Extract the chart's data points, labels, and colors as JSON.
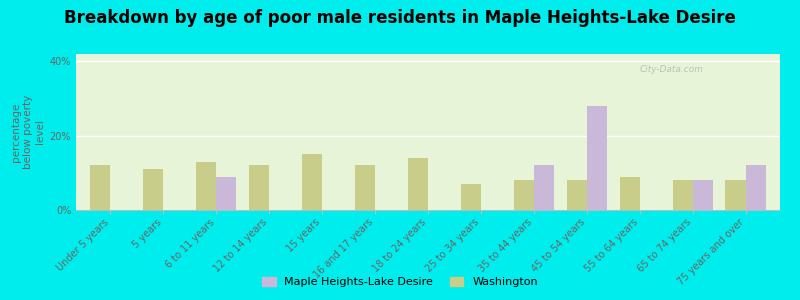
{
  "title": "Breakdown by age of poor male residents in Maple Heights-Lake Desire",
  "categories": [
    "Under 5 years",
    "5 years",
    "6 to 11 years",
    "12 to 14 years",
    "15 years",
    "16 and 17 years",
    "18 to 24 years",
    "25 to 34 years",
    "35 to 44 years",
    "45 to 54 years",
    "55 to 64 years",
    "65 to 74 years",
    "75 years and over"
  ],
  "maple_values": [
    0,
    0,
    9,
    0,
    0,
    0,
    0,
    0,
    12,
    28,
    0,
    8,
    12
  ],
  "washington_values": [
    12,
    11,
    13,
    12,
    15,
    12,
    14,
    7,
    8,
    8,
    9,
    8,
    8
  ],
  "maple_color": "#c9b8d8",
  "washington_color": "#c8cd8a",
  "ylabel": "percentage\nbelow poverty\nlevel",
  "ylim": [
    0,
    42
  ],
  "yticks": [
    0,
    20,
    40
  ],
  "ytick_labels": [
    "0%",
    "20%",
    "40%"
  ],
  "plot_bg_color": "#e8f4d8",
  "outer_background": "#00eded",
  "legend_maple": "Maple Heights-Lake Desire",
  "legend_washington": "Washington",
  "title_fontsize": 12,
  "ylabel_fontsize": 7.5,
  "tick_label_fontsize": 7
}
